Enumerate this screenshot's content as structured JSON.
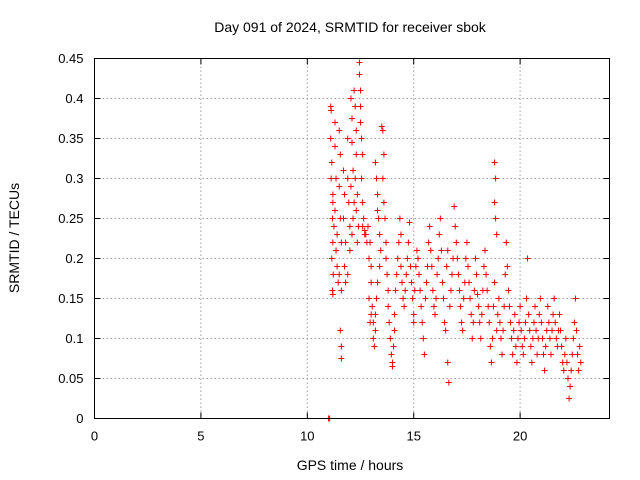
{
  "chart_data": {
    "type": "scatter",
    "title": "Day 091 of 2024, SRMTID for receiver sbok",
    "xlabel": "GPS time / hours",
    "ylabel": "SRMTID / TECUs",
    "xlim": [
      0,
      24.2
    ],
    "ylim": [
      0,
      0.45
    ],
    "x_ticks": [
      0,
      5,
      10,
      15,
      20
    ],
    "y_ticks": [
      0,
      0.05,
      0.1,
      0.15,
      0.2,
      0.25,
      0.3,
      0.35,
      0.4,
      0.45
    ],
    "x_tick_labels": [
      "0",
      "5",
      "10",
      "15",
      "20"
    ],
    "y_tick_labels": [
      "0",
      "0.05",
      "0.1",
      "0.15",
      "0.2",
      "0.25",
      "0.3",
      "0.35",
      "0.4",
      "0.45"
    ],
    "grid": true,
    "marker": "plus",
    "marker_color": "#ff0000",
    "series": [
      {
        "name": "sbok",
        "points": [
          [
            11.0,
            0.0
          ],
          [
            11.05,
            0.0
          ],
          [
            11.1,
            0.39
          ],
          [
            11.12,
            0.385
          ],
          [
            11.1,
            0.35
          ],
          [
            11.15,
            0.32
          ],
          [
            11.12,
            0.3
          ],
          [
            11.2,
            0.28
          ],
          [
            11.2,
            0.27
          ],
          [
            11.18,
            0.25
          ],
          [
            11.25,
            0.24
          ],
          [
            11.2,
            0.22
          ],
          [
            11.15,
            0.2
          ],
          [
            11.22,
            0.18
          ],
          [
            11.18,
            0.16
          ],
          [
            11.2,
            0.155
          ],
          [
            11.3,
            0.37
          ],
          [
            11.3,
            0.34
          ],
          [
            11.35,
            0.3
          ],
          [
            11.3,
            0.26
          ],
          [
            11.4,
            0.23
          ],
          [
            11.35,
            0.21
          ],
          [
            11.4,
            0.19
          ],
          [
            11.45,
            0.17
          ],
          [
            11.5,
            0.36
          ],
          [
            11.55,
            0.33
          ],
          [
            11.5,
            0.29
          ],
          [
            11.55,
            0.25
          ],
          [
            11.6,
            0.22
          ],
          [
            11.5,
            0.18
          ],
          [
            11.6,
            0.16
          ],
          [
            11.55,
            0.11
          ],
          [
            11.6,
            0.09
          ],
          [
            11.6,
            0.075
          ],
          [
            11.7,
            0.31
          ],
          [
            11.75,
            0.28
          ],
          [
            11.7,
            0.25
          ],
          [
            11.8,
            0.22
          ],
          [
            11.75,
            0.19
          ],
          [
            11.8,
            0.17
          ],
          [
            11.9,
            0.35
          ],
          [
            11.9,
            0.3
          ],
          [
            11.95,
            0.27
          ],
          [
            12.0,
            0.24
          ],
          [
            12.0,
            0.21
          ],
          [
            11.9,
            0.18
          ],
          [
            12.05,
            0.4
          ],
          [
            12.1,
            0.375
          ],
          [
            12.1,
            0.345
          ],
          [
            12.15,
            0.31
          ],
          [
            12.05,
            0.29
          ],
          [
            12.2,
            0.27
          ],
          [
            12.15,
            0.25
          ],
          [
            12.1,
            0.23
          ],
          [
            12.2,
            0.41
          ],
          [
            12.25,
            0.39
          ],
          [
            12.3,
            0.36
          ],
          [
            12.3,
            0.33
          ],
          [
            12.25,
            0.3
          ],
          [
            12.35,
            0.28
          ],
          [
            12.3,
            0.26
          ],
          [
            12.4,
            0.24
          ],
          [
            12.35,
            0.22
          ],
          [
            12.45,
            0.445
          ],
          [
            12.45,
            0.43
          ],
          [
            12.5,
            0.41
          ],
          [
            12.5,
            0.39
          ],
          [
            12.5,
            0.37
          ],
          [
            12.55,
            0.35
          ],
          [
            12.6,
            0.33
          ],
          [
            12.55,
            0.3
          ],
          [
            12.6,
            0.27
          ],
          [
            12.65,
            0.25
          ],
          [
            12.6,
            0.24
          ],
          [
            12.7,
            0.23
          ],
          [
            12.7,
            0.235
          ],
          [
            12.75,
            0.23
          ],
          [
            12.8,
            0.22
          ],
          [
            12.85,
            0.24
          ],
          [
            12.9,
            0.2
          ],
          [
            12.95,
            0.22
          ],
          [
            13.0,
            0.19
          ],
          [
            13.0,
            0.17
          ],
          [
            12.9,
            0.15
          ],
          [
            13.0,
            0.13
          ],
          [
            12.95,
            0.12
          ],
          [
            13.05,
            0.14
          ],
          [
            13.1,
            0.12
          ],
          [
            13.1,
            0.1
          ],
          [
            13.15,
            0.09
          ],
          [
            13.2,
            0.13
          ],
          [
            13.2,
            0.11
          ],
          [
            13.25,
            0.15
          ],
          [
            13.3,
            0.17
          ],
          [
            13.2,
            0.32
          ],
          [
            13.25,
            0.3
          ],
          [
            13.3,
            0.28
          ],
          [
            13.3,
            0.26
          ],
          [
            13.35,
            0.25
          ],
          [
            13.4,
            0.23
          ],
          [
            13.45,
            0.21
          ],
          [
            13.4,
            0.19
          ],
          [
            13.5,
            0.365
          ],
          [
            13.55,
            0.36
          ],
          [
            13.6,
            0.33
          ],
          [
            13.55,
            0.3
          ],
          [
            13.6,
            0.27
          ],
          [
            13.65,
            0.25
          ],
          [
            13.7,
            0.22
          ],
          [
            13.7,
            0.2
          ],
          [
            13.75,
            0.18
          ],
          [
            13.8,
            0.16
          ],
          [
            13.8,
            0.14
          ],
          [
            13.85,
            0.12
          ],
          [
            13.9,
            0.1
          ],
          [
            13.95,
            0.08
          ],
          [
            14.0,
            0.065
          ],
          [
            14.0,
            0.07
          ],
          [
            14.05,
            0.09
          ],
          [
            14.1,
            0.11
          ],
          [
            14.1,
            0.13
          ],
          [
            14.15,
            0.16
          ],
          [
            14.2,
            0.18
          ],
          [
            14.25,
            0.2
          ],
          [
            14.3,
            0.22
          ],
          [
            14.35,
            0.25
          ],
          [
            14.4,
            0.23
          ],
          [
            14.4,
            0.19
          ],
          [
            14.45,
            0.17
          ],
          [
            14.5,
            0.15
          ],
          [
            14.55,
            0.14
          ],
          [
            14.6,
            0.16
          ],
          [
            14.65,
            0.18
          ],
          [
            14.7,
            0.2
          ],
          [
            14.75,
            0.22
          ],
          [
            14.8,
            0.245
          ],
          [
            14.85,
            0.19
          ],
          [
            14.9,
            0.17
          ],
          [
            14.95,
            0.15
          ],
          [
            15.0,
            0.13
          ],
          [
            15.0,
            0.12
          ],
          [
            15.05,
            0.16
          ],
          [
            15.1,
            0.19
          ],
          [
            15.15,
            0.21
          ],
          [
            15.2,
            0.2
          ],
          [
            15.25,
            0.18
          ],
          [
            15.3,
            0.16
          ],
          [
            15.35,
            0.14
          ],
          [
            15.4,
            0.12
          ],
          [
            15.45,
            0.1
          ],
          [
            15.5,
            0.08
          ],
          [
            15.55,
            0.15
          ],
          [
            15.6,
            0.17
          ],
          [
            15.65,
            0.19
          ],
          [
            15.7,
            0.22
          ],
          [
            15.75,
            0.24
          ],
          [
            15.8,
            0.21
          ],
          [
            15.85,
            0.19
          ],
          [
            15.9,
            0.16
          ],
          [
            15.95,
            0.14
          ],
          [
            16.0,
            0.13
          ],
          [
            16.05,
            0.15
          ],
          [
            16.1,
            0.18
          ],
          [
            16.15,
            0.2
          ],
          [
            16.2,
            0.23
          ],
          [
            16.25,
            0.25
          ],
          [
            16.3,
            0.21
          ],
          [
            16.35,
            0.17
          ],
          [
            16.4,
            0.15
          ],
          [
            16.45,
            0.12
          ],
          [
            16.5,
            0.11
          ],
          [
            16.55,
            0.19
          ],
          [
            16.6,
            0.21
          ],
          [
            16.6,
            0.07
          ],
          [
            16.65,
            0.045
          ],
          [
            16.7,
            0.14
          ],
          [
            16.75,
            0.16
          ],
          [
            16.8,
            0.18
          ],
          [
            16.85,
            0.2
          ],
          [
            16.9,
            0.265
          ],
          [
            16.95,
            0.24
          ],
          [
            17.0,
            0.22
          ],
          [
            17.05,
            0.2
          ],
          [
            17.1,
            0.18
          ],
          [
            17.15,
            0.16
          ],
          [
            17.2,
            0.14
          ],
          [
            17.25,
            0.12
          ],
          [
            17.3,
            0.11
          ],
          [
            17.35,
            0.15
          ],
          [
            17.4,
            0.17
          ],
          [
            17.45,
            0.2
          ],
          [
            17.5,
            0.22
          ],
          [
            17.55,
            0.19
          ],
          [
            17.6,
            0.17
          ],
          [
            17.65,
            0.15
          ],
          [
            17.7,
            0.13
          ],
          [
            17.75,
            0.1
          ],
          [
            17.8,
            0.12
          ],
          [
            17.85,
            0.16
          ],
          [
            17.9,
            0.2
          ],
          [
            17.95,
            0.18
          ],
          [
            18.0,
            0.155
          ],
          [
            18.05,
            0.14
          ],
          [
            18.1,
            0.12
          ],
          [
            18.15,
            0.1
          ],
          [
            18.2,
            0.13
          ],
          [
            18.25,
            0.16
          ],
          [
            18.3,
            0.19
          ],
          [
            18.35,
            0.21
          ],
          [
            18.4,
            0.18
          ],
          [
            18.45,
            0.16
          ],
          [
            18.5,
            0.14
          ],
          [
            18.55,
            0.12
          ],
          [
            18.6,
            0.09
          ],
          [
            18.65,
            0.07
          ],
          [
            18.7,
            0.1
          ],
          [
            18.75,
            0.14
          ],
          [
            18.8,
            0.17
          ],
          [
            18.8,
            0.32
          ],
          [
            18.85,
            0.3
          ],
          [
            18.8,
            0.27
          ],
          [
            18.85,
            0.25
          ],
          [
            18.9,
            0.23
          ],
          [
            18.9,
            0.11
          ],
          [
            18.95,
            0.13
          ],
          [
            19.0,
            0.15
          ],
          [
            19.05,
            0.12
          ],
          [
            19.1,
            0.1
          ],
          [
            19.15,
            0.08
          ],
          [
            19.2,
            0.11
          ],
          [
            19.25,
            0.14
          ],
          [
            19.3,
            0.18
          ],
          [
            19.35,
            0.22
          ],
          [
            19.4,
            0.19
          ],
          [
            19.45,
            0.16
          ],
          [
            19.5,
            0.14
          ],
          [
            19.55,
            0.12
          ],
          [
            19.6,
            0.1
          ],
          [
            19.65,
            0.08
          ],
          [
            19.7,
            0.11
          ],
          [
            19.75,
            0.13
          ],
          [
            19.8,
            0.09
          ],
          [
            19.85,
            0.07
          ],
          [
            19.9,
            0.1
          ],
          [
            19.95,
            0.12
          ],
          [
            20.0,
            0.14
          ],
          [
            20.05,
            0.11
          ],
          [
            20.1,
            0.09
          ],
          [
            20.15,
            0.08
          ],
          [
            20.2,
            0.1
          ],
          [
            20.25,
            0.12
          ],
          [
            20.3,
            0.15
          ],
          [
            20.35,
            0.2
          ],
          [
            20.4,
            0.13
          ],
          [
            20.45,
            0.11
          ],
          [
            20.5,
            0.09
          ],
          [
            20.55,
            0.07
          ],
          [
            20.6,
            0.1
          ],
          [
            20.65,
            0.12
          ],
          [
            20.7,
            0.14
          ],
          [
            20.75,
            0.11
          ],
          [
            20.8,
            0.08
          ],
          [
            20.85,
            0.1
          ],
          [
            20.9,
            0.13
          ],
          [
            20.95,
            0.15
          ],
          [
            21.0,
            0.12
          ],
          [
            21.05,
            0.1
          ],
          [
            21.1,
            0.08
          ],
          [
            21.15,
            0.06
          ],
          [
            21.2,
            0.09
          ],
          [
            21.25,
            0.11
          ],
          [
            21.3,
            0.14
          ],
          [
            21.35,
            0.12
          ],
          [
            21.4,
            0.1
          ],
          [
            21.45,
            0.08
          ],
          [
            21.5,
            0.11
          ],
          [
            21.55,
            0.13
          ],
          [
            21.6,
            0.15
          ],
          [
            21.65,
            0.12
          ],
          [
            21.7,
            0.1
          ],
          [
            21.75,
            0.09
          ],
          [
            21.8,
            0.11
          ],
          [
            21.85,
            0.13
          ],
          [
            21.9,
            0.11
          ],
          [
            21.95,
            0.09
          ],
          [
            22.0,
            0.07
          ],
          [
            22.05,
            0.06
          ],
          [
            22.1,
            0.08
          ],
          [
            22.15,
            0.1
          ],
          [
            22.2,
            0.07
          ],
          [
            22.25,
            0.05
          ],
          [
            22.3,
            0.025
          ],
          [
            22.35,
            0.04
          ],
          [
            22.4,
            0.06
          ],
          [
            22.45,
            0.08
          ],
          [
            22.5,
            0.1
          ],
          [
            22.55,
            0.12
          ],
          [
            22.6,
            0.15
          ],
          [
            22.65,
            0.11
          ],
          [
            22.7,
            0.08
          ],
          [
            22.75,
            0.06
          ],
          [
            22.8,
            0.09
          ],
          [
            22.85,
            0.07
          ]
        ]
      }
    ]
  }
}
